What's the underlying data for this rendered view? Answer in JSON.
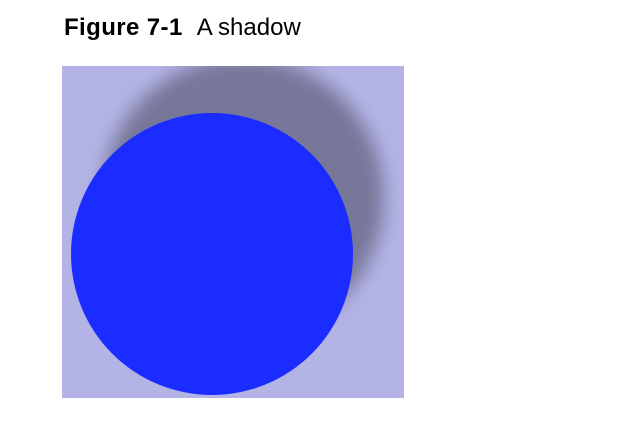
{
  "caption": {
    "label": "Figure 7-1",
    "title": "A shadow"
  },
  "figure": {
    "background_color": "#b3b3e6",
    "shadow_color": "#77779a",
    "circle_color": "#1a2cff"
  }
}
